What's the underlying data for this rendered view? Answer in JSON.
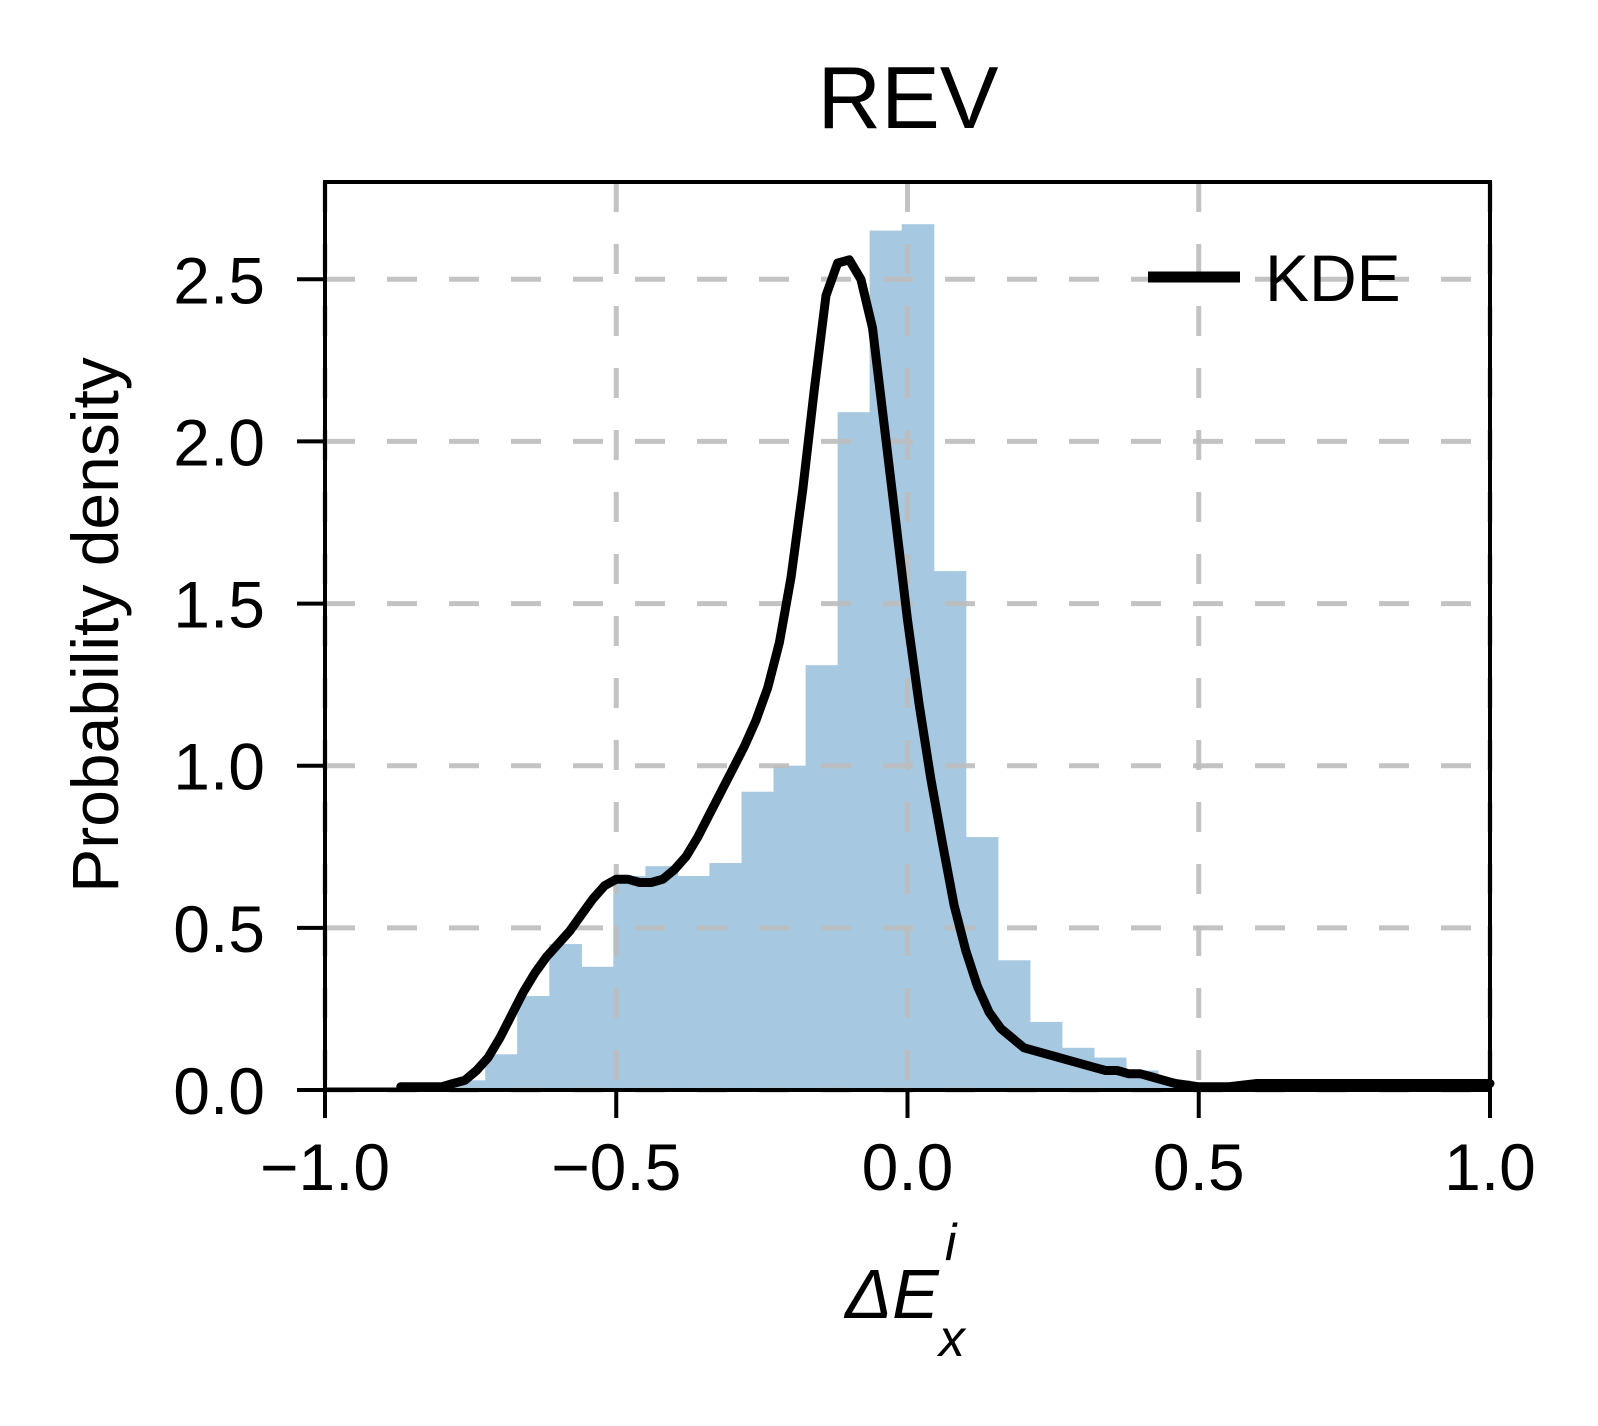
{
  "chart_data": {
    "type": "histogram",
    "title": "REV",
    "xlabel": {
      "base": "ΔE",
      "subscript": "x",
      "superscript": "i"
    },
    "ylabel": "Probability density",
    "xlim": [
      -1.0,
      1.0
    ],
    "ylim": [
      0.0,
      2.8
    ],
    "xticks": [
      -1.0,
      -0.5,
      0.0,
      0.5,
      1.0
    ],
    "xtick_labels": [
      "−1.0",
      "−0.5",
      "0.0",
      "0.5",
      "1.0"
    ],
    "yticks": [
      0.0,
      0.5,
      1.0,
      1.5,
      2.0,
      2.5
    ],
    "ytick_labels": [
      "0.0",
      "0.5",
      "1.0",
      "1.5",
      "2.0",
      "2.5"
    ],
    "grid": true,
    "legend": {
      "position": "top-right",
      "entries": [
        "KDE"
      ]
    },
    "colors": {
      "histogram": "#a6c8e0",
      "kde": "#000000",
      "grid": "#bdbdbd"
    },
    "histogram": {
      "bin_edges": [
        -1.0,
        -0.945,
        -0.89,
        -0.835,
        -0.78,
        -0.725,
        -0.67,
        -0.615,
        -0.56,
        -0.505,
        -0.45,
        -0.395,
        -0.34,
        -0.285,
        -0.23,
        -0.175,
        -0.12,
        -0.065,
        -0.01,
        0.045,
        0.1,
        0.155,
        0.21,
        0.265,
        0.32,
        0.375,
        0.43,
        0.485,
        0.54,
        0.595,
        0.65,
        0.705,
        0.76,
        0.815,
        0.87,
        0.925,
        0.98,
        1.0
      ],
      "density": [
        0.0,
        0.0,
        0.0,
        0.0,
        0.03,
        0.11,
        0.29,
        0.45,
        0.38,
        0.66,
        0.69,
        0.66,
        0.7,
        0.92,
        1.0,
        1.31,
        2.09,
        2.65,
        2.67,
        1.6,
        0.78,
        0.4,
        0.21,
        0.13,
        0.1,
        0.06,
        0.03,
        0.02,
        0.01,
        0.01,
        0.01,
        0.01,
        0.01,
        0.0,
        0.0,
        0.0,
        0.0
      ]
    },
    "series": [
      {
        "name": "KDE",
        "x": [
          -0.87,
          -0.83,
          -0.8,
          -0.78,
          -0.76,
          -0.74,
          -0.72,
          -0.7,
          -0.68,
          -0.66,
          -0.64,
          -0.62,
          -0.6,
          -0.58,
          -0.56,
          -0.54,
          -0.52,
          -0.5,
          -0.48,
          -0.46,
          -0.44,
          -0.42,
          -0.4,
          -0.38,
          -0.36,
          -0.34,
          -0.32,
          -0.3,
          -0.28,
          -0.26,
          -0.24,
          -0.22,
          -0.2,
          -0.18,
          -0.16,
          -0.14,
          -0.12,
          -0.1,
          -0.08,
          -0.06,
          -0.04,
          -0.02,
          0.0,
          0.02,
          0.04,
          0.06,
          0.08,
          0.1,
          0.12,
          0.14,
          0.16,
          0.18,
          0.2,
          0.22,
          0.24,
          0.26,
          0.28,
          0.3,
          0.32,
          0.34,
          0.36,
          0.38,
          0.4,
          0.42,
          0.44,
          0.46,
          0.5,
          0.55,
          0.6,
          0.65,
          0.7,
          0.75,
          0.8,
          0.85,
          0.9,
          0.95,
          1.0
        ],
        "y": [
          0.01,
          0.01,
          0.01,
          0.02,
          0.03,
          0.06,
          0.1,
          0.16,
          0.23,
          0.3,
          0.36,
          0.41,
          0.45,
          0.49,
          0.54,
          0.59,
          0.63,
          0.65,
          0.65,
          0.64,
          0.64,
          0.65,
          0.68,
          0.72,
          0.78,
          0.85,
          0.92,
          0.99,
          1.06,
          1.14,
          1.24,
          1.38,
          1.58,
          1.85,
          2.16,
          2.45,
          2.55,
          2.56,
          2.5,
          2.35,
          2.05,
          1.75,
          1.45,
          1.19,
          0.96,
          0.76,
          0.57,
          0.43,
          0.32,
          0.24,
          0.19,
          0.16,
          0.13,
          0.12,
          0.11,
          0.1,
          0.09,
          0.08,
          0.07,
          0.06,
          0.06,
          0.05,
          0.05,
          0.04,
          0.03,
          0.02,
          0.01,
          0.01,
          0.02,
          0.02,
          0.02,
          0.02,
          0.02,
          0.02,
          0.02,
          0.02,
          0.02
        ]
      }
    ]
  }
}
